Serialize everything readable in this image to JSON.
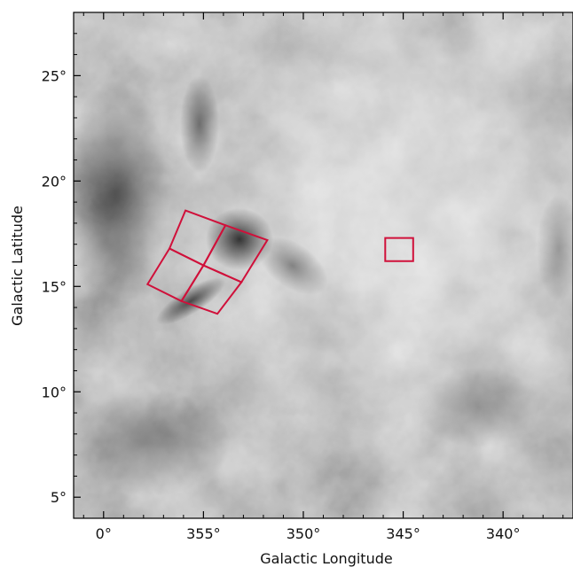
{
  "chart_data": {
    "type": "heatmap",
    "colormap": "grayscale",
    "xlabel": "Galactic Longitude",
    "ylabel": "Galactic Latitude",
    "xlim": [
      1.5,
      336.5
    ],
    "ylim": [
      4.0,
      28.0
    ],
    "x_axis_reversed": true,
    "x_ticks": [
      {
        "value": 0,
        "label": "0°"
      },
      {
        "value": 355,
        "label": "355°"
      },
      {
        "value": 350,
        "label": "350°"
      },
      {
        "value": 345,
        "label": "345°"
      },
      {
        "value": 340,
        "label": "340°"
      }
    ],
    "y_ticks": [
      {
        "value": 5,
        "label": "5°"
      },
      {
        "value": 10,
        "label": "10°"
      },
      {
        "value": 15,
        "label": "15°"
      },
      {
        "value": 20,
        "label": "20°"
      },
      {
        "value": 25,
        "label": "25°"
      }
    ],
    "overlay_color": "#d0103a",
    "overlays": [
      {
        "name": "field-1",
        "corners_deg": [
          [
            355.9,
            18.6
          ],
          [
            353.9,
            17.9
          ],
          [
            355.0,
            16.0
          ],
          [
            356.7,
            16.8
          ]
        ]
      },
      {
        "name": "field-2",
        "corners_deg": [
          [
            353.9,
            17.9
          ],
          [
            351.8,
            17.2
          ],
          [
            353.1,
            15.2
          ],
          [
            355.0,
            16.0
          ]
        ]
      },
      {
        "name": "field-3",
        "corners_deg": [
          [
            356.7,
            16.8
          ],
          [
            355.0,
            16.0
          ],
          [
            356.1,
            14.3
          ],
          [
            357.8,
            15.1
          ]
        ]
      },
      {
        "name": "field-4",
        "corners_deg": [
          [
            355.0,
            16.0
          ],
          [
            353.1,
            15.2
          ],
          [
            354.3,
            13.7
          ],
          [
            356.1,
            14.3
          ]
        ]
      },
      {
        "name": "field-5",
        "corners_deg": [
          [
            345.9,
            17.3
          ],
          [
            344.5,
            17.3
          ],
          [
            344.5,
            16.2
          ],
          [
            345.9,
            16.2
          ]
        ]
      }
    ]
  }
}
